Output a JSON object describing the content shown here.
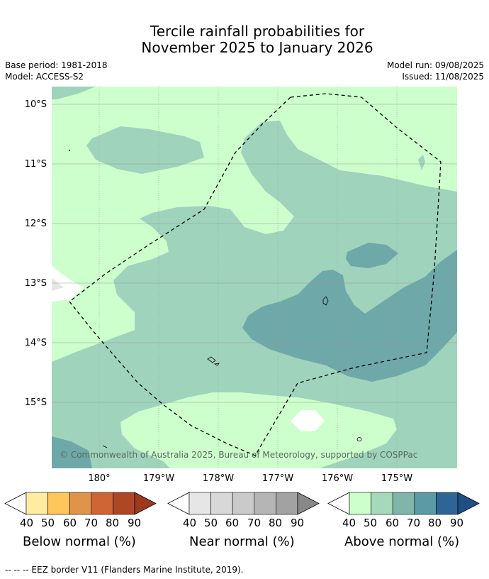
{
  "title": {
    "line1": "Tercile rainfall probabilities for",
    "line2": "November 2025 to January 2026"
  },
  "meta": {
    "base_period": "Base period: 1981-2018",
    "model": "Model: ACCESS-S2",
    "model_run": "Model run: 09/08/2025",
    "issued": "Issued: 11/08/2025"
  },
  "axes": {
    "lat_labels": [
      "10°S",
      "11°S",
      "12°S",
      "13°S",
      "14°S",
      "15°S"
    ],
    "lon_labels": [
      "180°",
      "179°W",
      "178°W",
      "177°W",
      "176°W",
      "175°W"
    ]
  },
  "copyright": "© Commonwealth of Australia 2025, Bureau of Meteorology, supported by COSPPac",
  "colorbars": [
    {
      "title": "Below normal (%)",
      "ticks": [
        "40",
        "50",
        "60",
        "70",
        "80",
        "90"
      ],
      "colors": [
        "#ffeca0",
        "#fec65c",
        "#e0944a",
        "#cf6535",
        "#ae4726",
        "#9c3a1d"
      ]
    },
    {
      "title": "Near normal (%)",
      "ticks": [
        "40",
        "50",
        "60",
        "70",
        "80",
        "90"
      ],
      "colors": [
        "#e6e6e6",
        "#d8d8d8",
        "#cacaca",
        "#b5b5b5",
        "#a2a2a2",
        "#888888"
      ]
    },
    {
      "title": "Above normal (%)",
      "ticks": [
        "40",
        "50",
        "60",
        "70",
        "80",
        "90"
      ],
      "colors": [
        "#ccffcc",
        "#a6d9bb",
        "#80b6aa",
        "#5c9aa5",
        "#2e6596",
        "#1e4f87"
      ]
    }
  ],
  "footnote": "--  --  -- EEZ border V11 (Flanders Marine Institute, 2019).",
  "colors": {
    "above_40_50": "#ccffcc",
    "above_50_60": "#9fd3bc",
    "above_60_70": "#6fa8a8",
    "near_normal_light": "#e6e6e6"
  }
}
